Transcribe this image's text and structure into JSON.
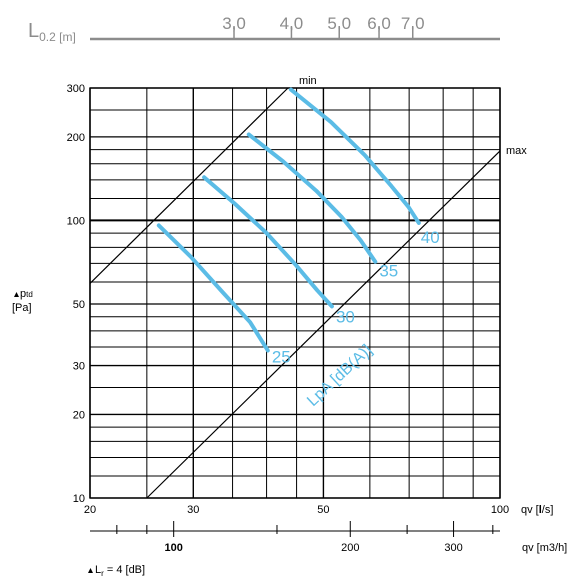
{
  "chart_data": {
    "type": "line",
    "top_scale": {
      "label_main": "L",
      "label_sub": "0.2 [m]",
      "ticks": [
        {
          "value": 3.0,
          "label": "3,0",
          "qv": 35.2
        },
        {
          "value": 4.0,
          "label": "4,0",
          "qv": 44.1
        },
        {
          "value": 5.0,
          "label": "5,0",
          "qv": 53.2
        },
        {
          "value": 6.0,
          "label": "6,0",
          "qv": 62.2
        },
        {
          "value": 7.0,
          "label": "7,0",
          "qv": 71.0
        }
      ]
    },
    "x_axis": {
      "scale": "log",
      "range": [
        20,
        100
      ],
      "tick_labels": [
        {
          "value": 20,
          "label": "20"
        },
        {
          "value": 30,
          "label": "30"
        },
        {
          "value": 50,
          "label": "50"
        },
        {
          "value": 100,
          "label": "100"
        }
      ],
      "label_main": "qv [",
      "label_bold": "l",
      "label_end": "/s]"
    },
    "x2_axis": {
      "scale": "log",
      "unit_ratio": 3.6,
      "tick_labels": [
        {
          "value": 100,
          "label": "100"
        },
        {
          "value": 200,
          "label": "200"
        },
        {
          "value": 300,
          "label": "300"
        }
      ],
      "label": "qv [m3/h]"
    },
    "y_axis": {
      "scale": "log",
      "range": [
        10,
        300
      ],
      "tick_labels": [
        {
          "value": 10,
          "label": "10"
        },
        {
          "value": 20,
          "label": "20"
        },
        {
          "value": 30,
          "label": "30"
        },
        {
          "value": 50,
          "label": "50"
        },
        {
          "value": 100,
          "label": "100"
        },
        {
          "value": 200,
          "label": "200"
        },
        {
          "value": 300,
          "label": "300"
        }
      ],
      "label_line1": "p",
      "label_line1_sub": "td",
      "label_line2": "[Pa]"
    },
    "boundary_lines": [
      {
        "name": "min",
        "label": "min",
        "points": [
          [
            20,
            59.3
          ],
          [
            43.5,
            300
          ]
        ]
      },
      {
        "name": "max",
        "label": "max",
        "points": [
          [
            25.0,
            10
          ],
          [
            100,
            178
          ]
        ]
      }
    ],
    "series_title": "LpA [dB(A)]",
    "series": [
      {
        "name": "25",
        "label": "25",
        "points": [
          [
            26.2,
            96
          ],
          [
            29.7,
            74
          ],
          [
            33.7,
            55
          ],
          [
            37.5,
            43
          ],
          [
            40.2,
            34
          ]
        ]
      },
      {
        "name": "30",
        "label": "30",
        "points": [
          [
            31.3,
            143
          ],
          [
            35.3,
            115
          ],
          [
            40.0,
            90
          ],
          [
            44.9,
            69
          ],
          [
            48.8,
            56
          ],
          [
            51.7,
            49
          ]
        ]
      },
      {
        "name": "35",
        "label": "35",
        "points": [
          [
            37.3,
            204
          ],
          [
            42.7,
            163
          ],
          [
            48.6,
            128
          ],
          [
            53.7,
            103
          ],
          [
            57.8,
            85
          ],
          [
            61.3,
            71
          ]
        ]
      },
      {
        "name": "40",
        "label": "40",
        "points": [
          [
            44.0,
            296
          ],
          [
            51.5,
            226
          ],
          [
            58.8,
            172
          ],
          [
            65.3,
            133
          ],
          [
            69.8,
            112
          ],
          [
            72.7,
            98
          ]
        ]
      }
    ],
    "footnote_main": "L",
    "footnote_sub": "r",
    "footnote_text": " = 4 [dB]",
    "colors": {
      "curve": "#5bbce6",
      "curve_label": "#5bbce6",
      "grid": "#000000",
      "top_scale": "#8c8c8c"
    }
  }
}
